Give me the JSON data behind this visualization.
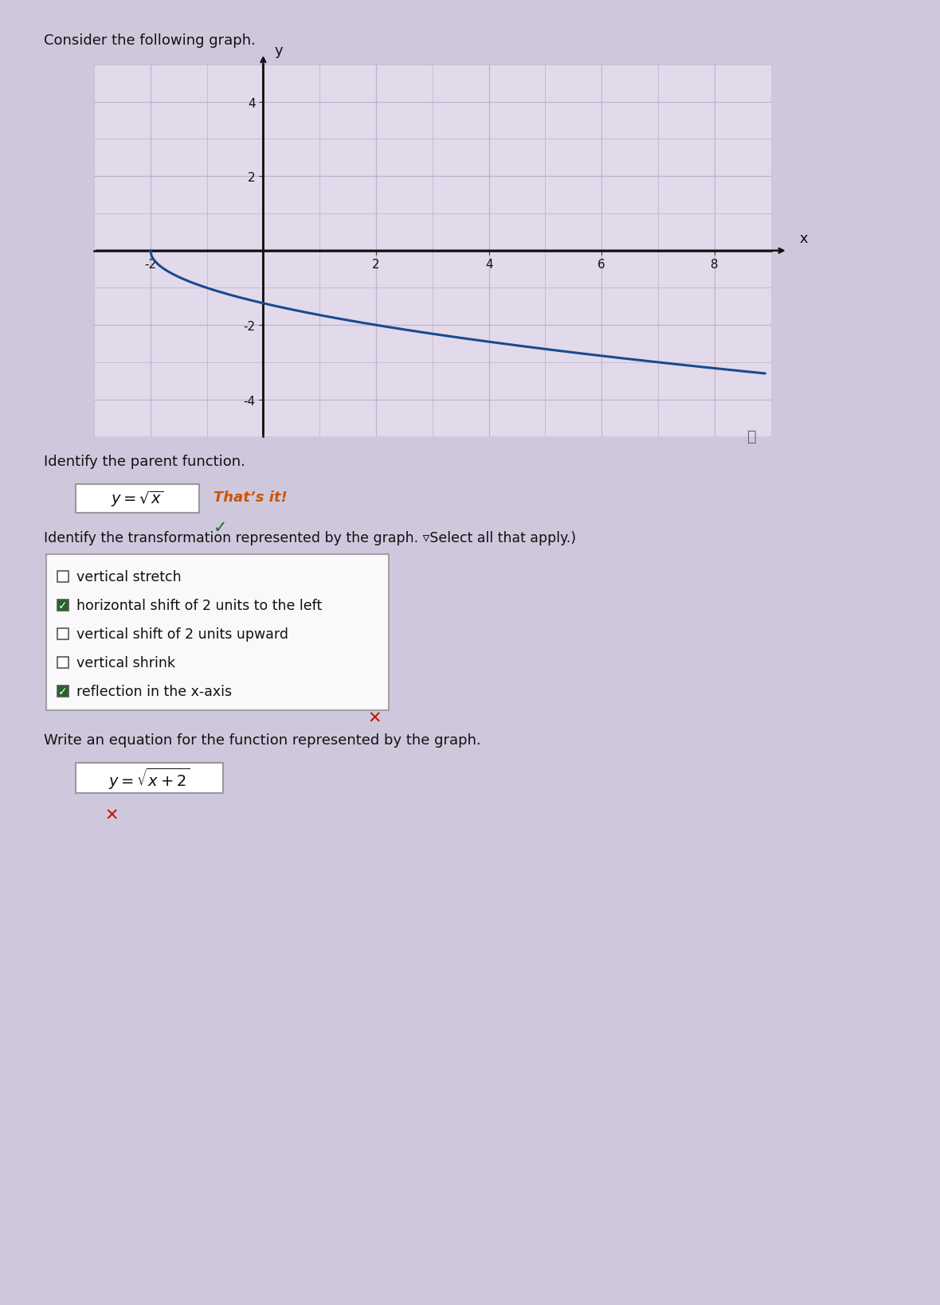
{
  "page_bg": "#cfc8dc",
  "graph_bg": "#e2daea",
  "grid_color": "#b8b0c8",
  "axis_color": "#111111",
  "curve_color": "#1a4a90",
  "curve_linewidth": 2.2,
  "xlim": [
    -3,
    9
  ],
  "ylim": [
    -5,
    5
  ],
  "xticks": [
    -2,
    2,
    4,
    6,
    8
  ],
  "yticks": [
    -4,
    -2,
    2,
    4
  ],
  "xlabel": "x",
  "ylabel": "y",
  "consider_text": "Consider the following graph.",
  "identify_parent_text": "Identify the parent function.",
  "thats_it_text": "That’s it!",
  "transformation_text": "Identify the transformation represented by the graph. ▿Select all that apply.)",
  "checkbox_items": [
    {
      "label": "vertical stretch",
      "checked": false
    },
    {
      "label": "horizontal shift of 2 units to the left",
      "checked": true
    },
    {
      "label": "vertical shift of 2 units upward",
      "checked": false
    },
    {
      "label": "vertical shrink",
      "checked": false
    },
    {
      "label": "reflection in the x-axis",
      "checked": true
    }
  ],
  "write_eq_text": "Write an equation for the function represented by the graph.",
  "thats_it_color": "#cc5500",
  "checkmark_color": "#226622",
  "red_x_color": "#cc1100",
  "box_border_color": "#999999",
  "text_color": "#111111",
  "info_color": "#666666"
}
